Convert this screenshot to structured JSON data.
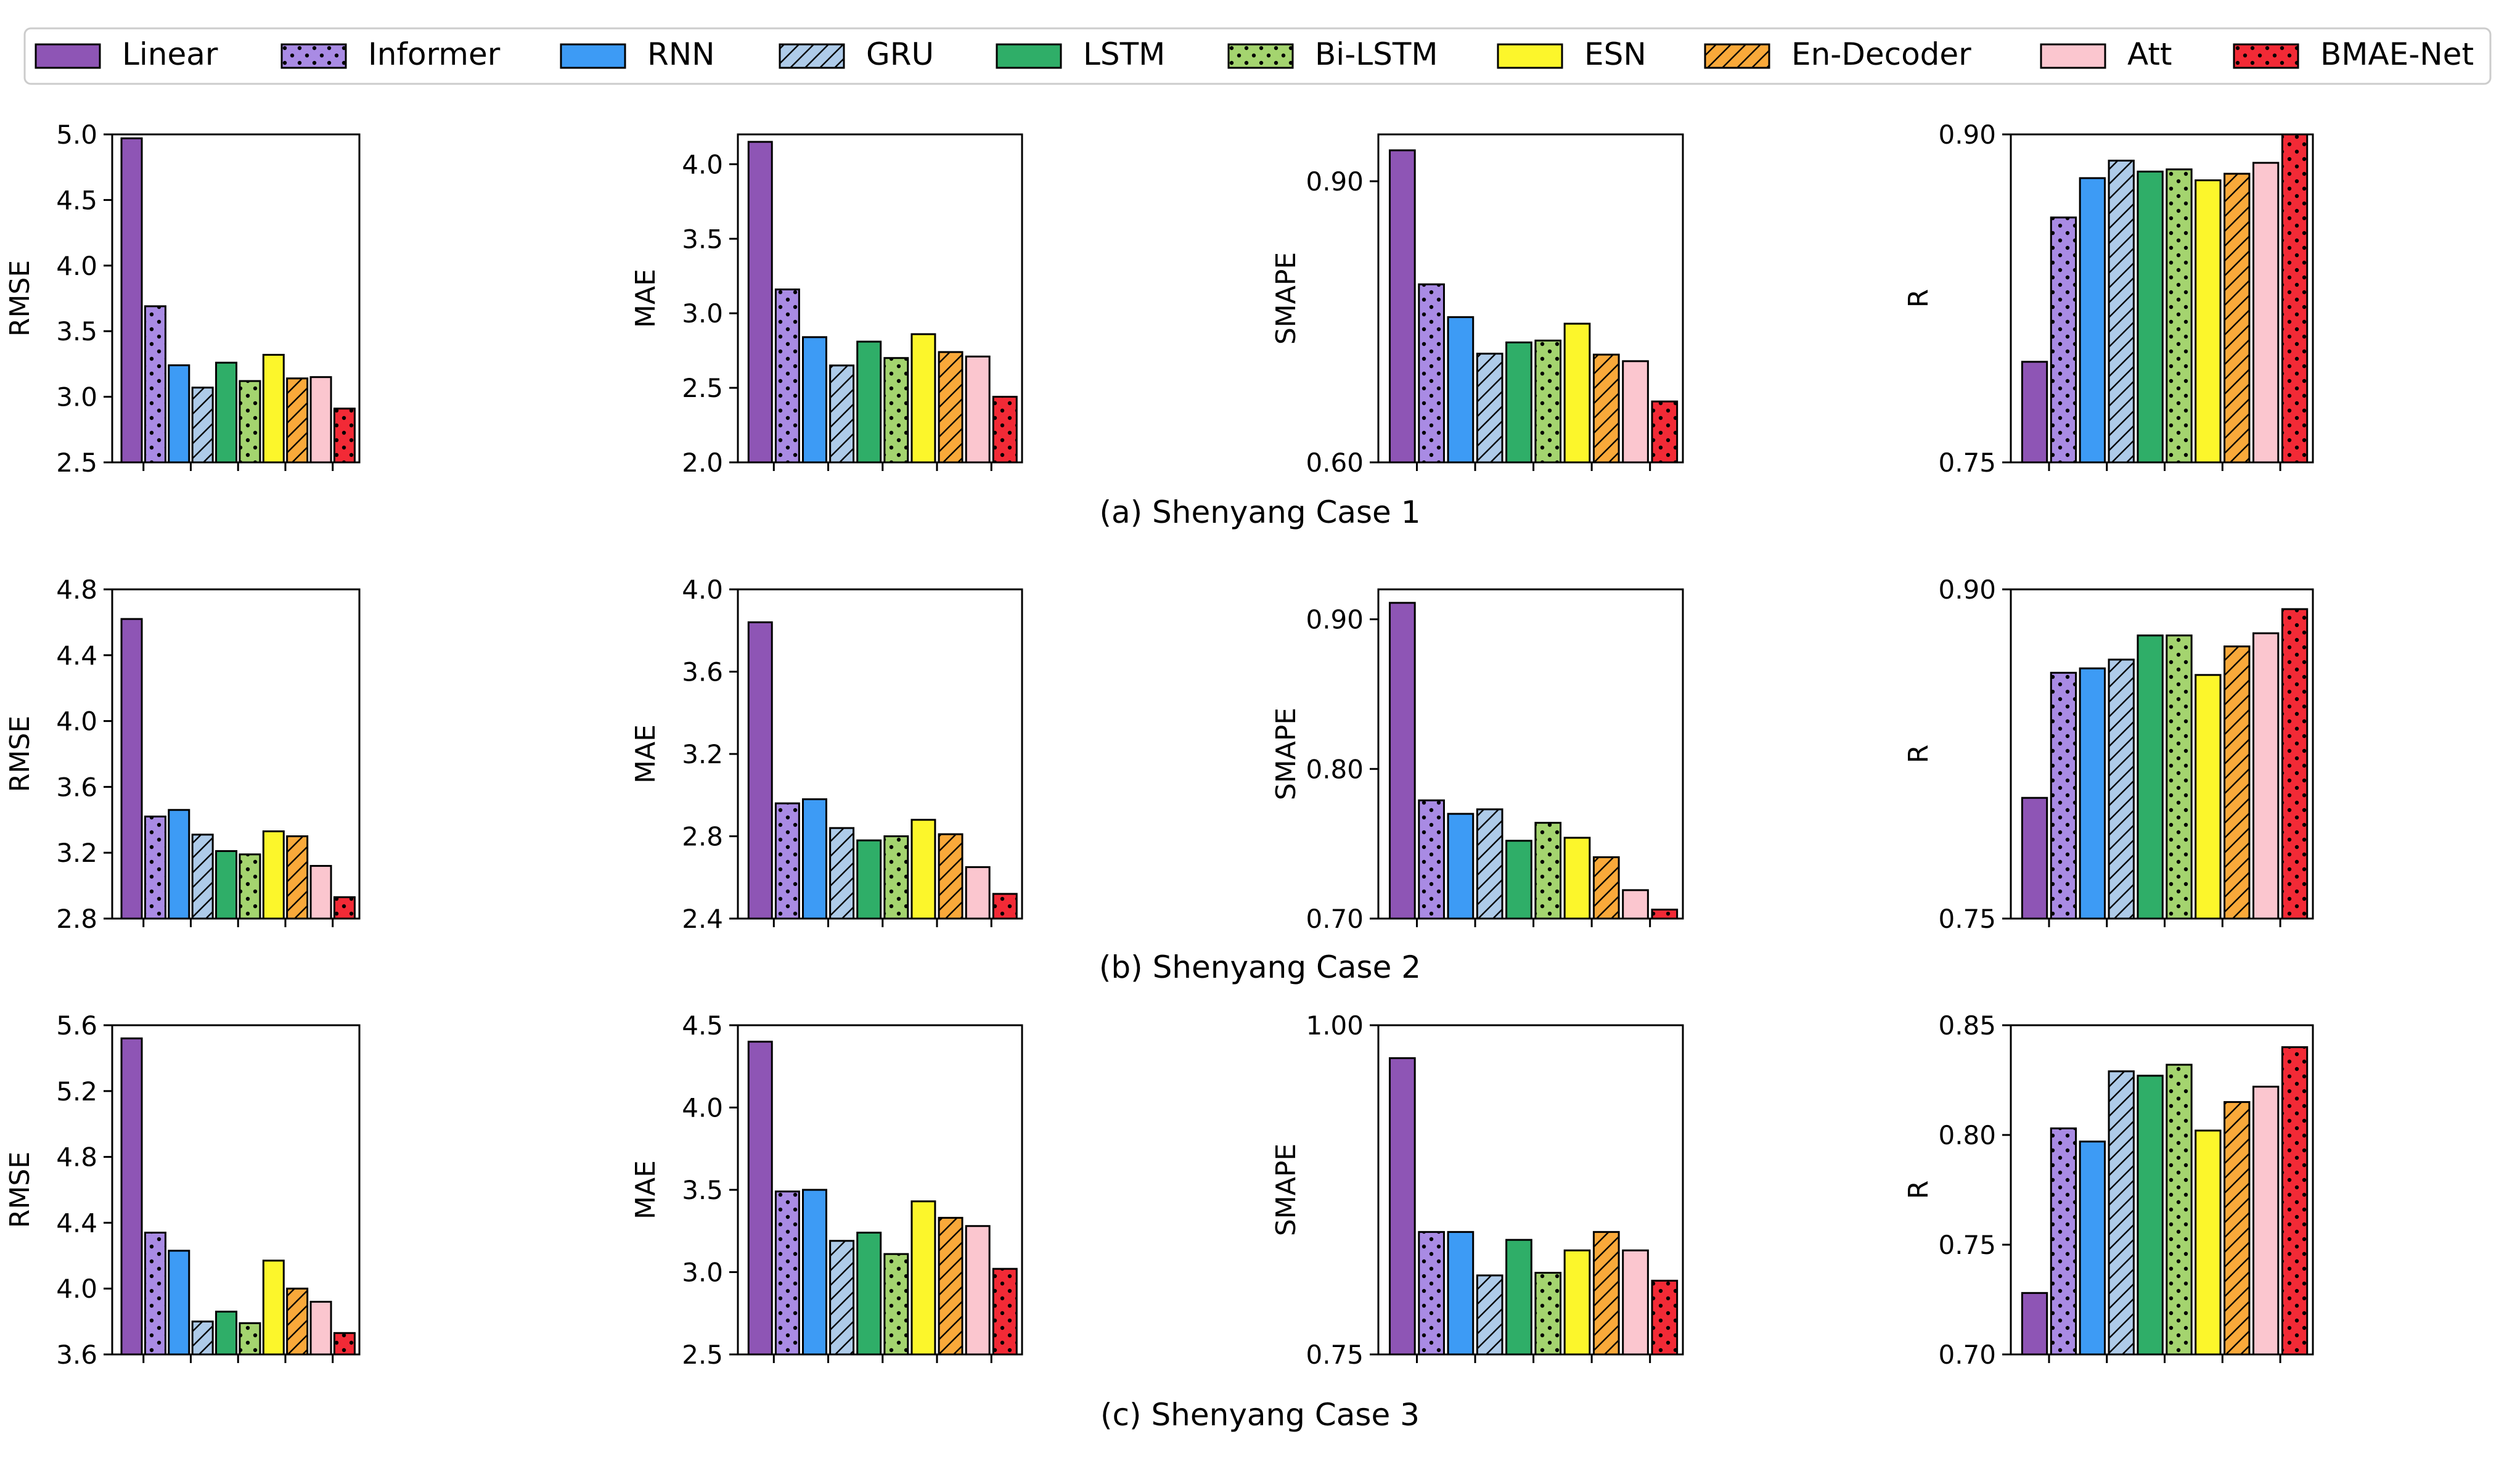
{
  "legend": {
    "items": [
      {
        "name": "Linear",
        "color": "#8e55b5",
        "pattern": "none"
      },
      {
        "name": "Informer",
        "color": "#a98be4",
        "pattern": "dots"
      },
      {
        "name": "RNN",
        "color": "#3d9bf5",
        "pattern": "none"
      },
      {
        "name": "GRU",
        "color": "#aecbe9",
        "pattern": "hatch"
      },
      {
        "name": "LSTM",
        "color": "#2fae68",
        "pattern": "none"
      },
      {
        "name": "Bi-LSTM",
        "color": "#a4d46f",
        "pattern": "dots"
      },
      {
        "name": "ESN",
        "color": "#fcf62b",
        "pattern": "none"
      },
      {
        "name": "En-Decoder",
        "color": "#f9a93a",
        "pattern": "hatch"
      },
      {
        "name": "Att",
        "color": "#fbc6cf",
        "pattern": "none"
      },
      {
        "name": "BMAE-Net",
        "color": "#f22a36",
        "pattern": "dots"
      }
    ]
  },
  "captions": [
    "(a) Shenyang Case 1",
    "(b) Shenyang Case 2",
    "(c) Shenyang Case 3"
  ],
  "chart_data": [
    {
      "type": "bar",
      "case": "Shenyang Case 1",
      "ylabel": "RMSE",
      "ylim": [
        2.5,
        5.0
      ],
      "yticks": [
        "2.5",
        "3.0",
        "3.5",
        "4.0",
        "4.5",
        "5.0"
      ],
      "values": [
        4.97,
        3.69,
        3.24,
        3.07,
        3.26,
        3.12,
        3.32,
        3.14,
        3.15,
        2.91
      ]
    },
    {
      "type": "bar",
      "case": "Shenyang Case 1",
      "ylabel": "MAE",
      "ylim": [
        2.0,
        4.2
      ],
      "yticks": [
        "2.0",
        "2.5",
        "3.0",
        "3.5",
        "4.0"
      ],
      "values": [
        4.15,
        3.16,
        2.84,
        2.65,
        2.81,
        2.7,
        2.86,
        2.74,
        2.71,
        2.44
      ]
    },
    {
      "type": "bar",
      "case": "Shenyang Case 1",
      "ylabel": "SMAPE",
      "ylim": [
        0.6,
        0.95
      ],
      "yticks": [
        "0.60",
        "0.90"
      ],
      "values": [
        0.933,
        0.79,
        0.755,
        0.716,
        0.728,
        0.73,
        0.748,
        0.715,
        0.708,
        0.665
      ]
    },
    {
      "type": "bar",
      "case": "Shenyang Case 1",
      "ylabel": "R",
      "ylim": [
        0.75,
        0.9
      ],
      "yticks": [
        "0.75",
        "0.90"
      ],
      "values": [
        0.796,
        0.862,
        0.88,
        0.888,
        0.883,
        0.884,
        0.879,
        0.882,
        0.887,
        0.9
      ]
    },
    {
      "type": "bar",
      "case": "Shenyang Case 2",
      "ylabel": "RMSE",
      "ylim": [
        2.8,
        4.8
      ],
      "yticks": [
        "2.8",
        "3.2",
        "3.6",
        "4.0",
        "4.4",
        "4.8"
      ],
      "values": [
        4.62,
        3.42,
        3.46,
        3.31,
        3.21,
        3.19,
        3.33,
        3.3,
        3.12,
        2.93
      ]
    },
    {
      "type": "bar",
      "case": "Shenyang Case 2",
      "ylabel": "MAE",
      "ylim": [
        2.4,
        4.0
      ],
      "yticks": [
        "2.4",
        "2.8",
        "3.2",
        "3.6",
        "4.0"
      ],
      "values": [
        3.84,
        2.96,
        2.98,
        2.84,
        2.78,
        2.8,
        2.88,
        2.81,
        2.65,
        2.52
      ]
    },
    {
      "type": "bar",
      "case": "Shenyang Case 2",
      "ylabel": "SMAPE",
      "ylim": [
        0.7,
        0.92
      ],
      "yticks": [
        "0.70",
        "0.80",
        "0.90"
      ],
      "values": [
        0.911,
        0.779,
        0.77,
        0.773,
        0.752,
        0.764,
        0.754,
        0.741,
        0.719,
        0.706
      ]
    },
    {
      "type": "bar",
      "case": "Shenyang Case 2",
      "ylabel": "R",
      "ylim": [
        0.75,
        0.9
      ],
      "yticks": [
        "0.75",
        "0.90"
      ],
      "values": [
        0.805,
        0.862,
        0.864,
        0.868,
        0.879,
        0.879,
        0.861,
        0.874,
        0.88,
        0.891
      ]
    },
    {
      "type": "bar",
      "case": "Shenyang Case 3",
      "ylabel": "RMSE",
      "ylim": [
        3.6,
        5.6
      ],
      "yticks": [
        "3.6",
        "4.0",
        "4.4",
        "4.8",
        "5.2",
        "5.6"
      ],
      "values": [
        5.52,
        4.34,
        4.23,
        3.8,
        3.86,
        3.79,
        4.17,
        4.0,
        3.92,
        3.73
      ]
    },
    {
      "type": "bar",
      "case": "Shenyang Case 3",
      "ylabel": "MAE",
      "ylim": [
        2.5,
        4.5
      ],
      "yticks": [
        "2.5",
        "3.0",
        "3.5",
        "4.0",
        "4.5"
      ],
      "values": [
        4.4,
        3.49,
        3.5,
        3.19,
        3.24,
        3.11,
        3.43,
        3.33,
        3.28,
        3.02
      ]
    },
    {
      "type": "bar",
      "case": "Shenyang Case 3",
      "ylabel": "SMAPE",
      "ylim": [
        0.75,
        1.0
      ],
      "yticks": [
        "0.75",
        "1.00"
      ],
      "values": [
        0.975,
        0.843,
        0.843,
        0.81,
        0.837,
        0.812,
        0.829,
        0.843,
        0.829,
        0.806
      ]
    },
    {
      "type": "bar",
      "case": "Shenyang Case 3",
      "ylabel": "R",
      "ylim": [
        0.7,
        0.85
      ],
      "yticks": [
        "0.70",
        "0.75",
        "0.80",
        "0.85"
      ],
      "values": [
        0.728,
        0.803,
        0.797,
        0.829,
        0.827,
        0.832,
        0.802,
        0.815,
        0.822,
        0.84
      ]
    }
  ]
}
